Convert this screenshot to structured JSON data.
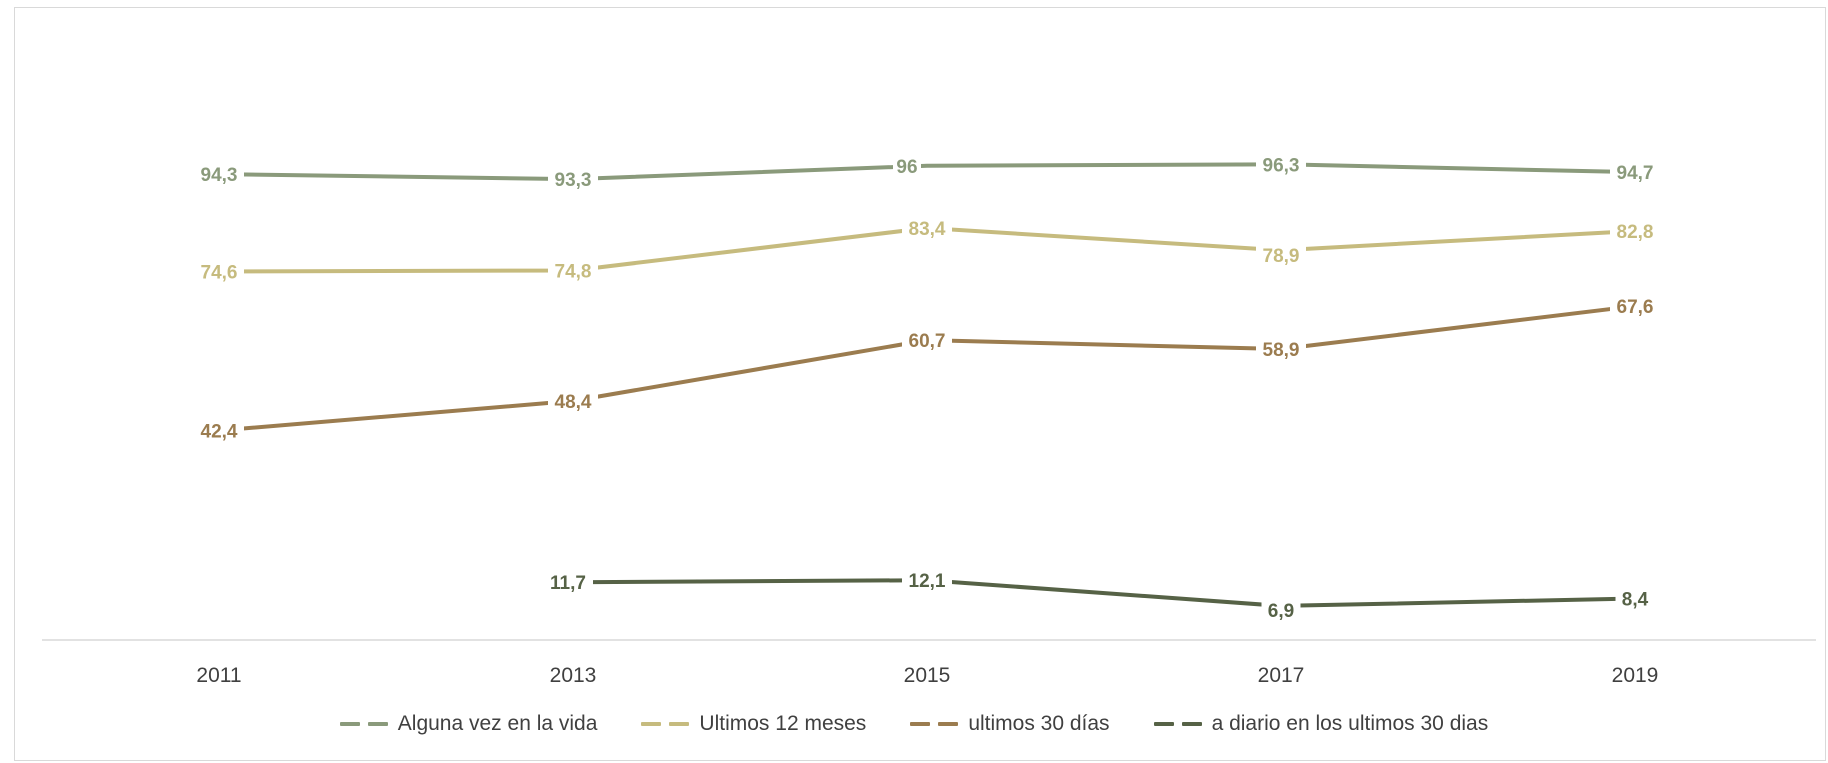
{
  "chart_data": {
    "type": "line",
    "title": "",
    "xlabel": "",
    "ylabel": "",
    "categories": [
      "2011",
      "2013",
      "2015",
      "2017",
      "2019"
    ],
    "ylim": [
      0,
      100
    ],
    "grid": false,
    "legend_position": "bottom",
    "series": [
      {
        "name": "Alguna vez en la vida",
        "color": "#8a9a7b",
        "values": [
          94.3,
          93.3,
          96,
          96.3,
          94.7
        ],
        "labels": [
          "94,3",
          "93,3",
          "96",
          "96,3",
          "94,7"
        ]
      },
      {
        "name": "Ultimos 12 meses",
        "color": "#c6bb7e",
        "values": [
          74.6,
          74.8,
          83.4,
          78.9,
          82.8
        ],
        "labels": [
          "74,6",
          "74,8",
          "83,4",
          "78,9",
          "82,8"
        ]
      },
      {
        "name": "ultimos 30 días",
        "color": "#9b7c4f",
        "values": [
          42.4,
          48.4,
          60.7,
          58.9,
          67.6
        ],
        "labels": [
          "42,4",
          "48,4",
          "60,7",
          "58,9",
          "67,6"
        ]
      },
      {
        "name": "a diario en los ultimos 30 dias",
        "color": "#566246",
        "values": [
          null,
          11.7,
          12.1,
          6.9,
          8.4
        ],
        "labels": [
          null,
          "11,7",
          "12,1",
          "6,9",
          "8,4"
        ]
      }
    ]
  }
}
